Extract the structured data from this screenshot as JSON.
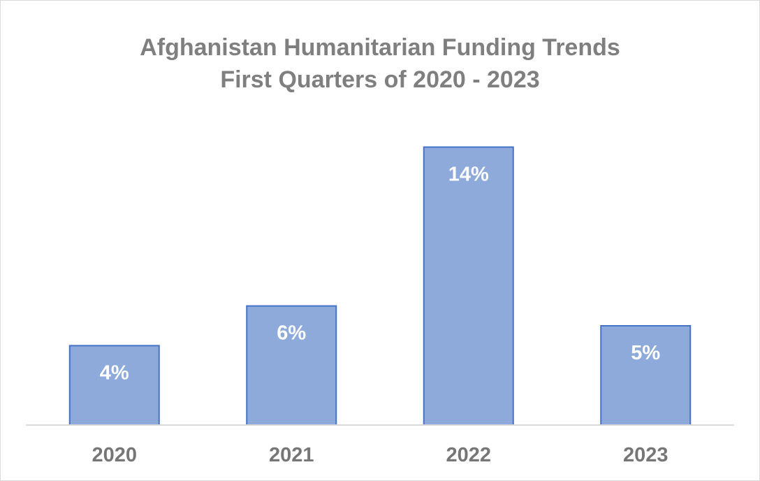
{
  "chart_data": {
    "type": "bar",
    "title": "Afghanistan Humanitarian Funding Trends",
    "subtitle": "First Quarters of 2020 - 2023",
    "categories": [
      "2020",
      "2021",
      "2022",
      "2023"
    ],
    "values": [
      4,
      6,
      14,
      5
    ],
    "data_labels": [
      "4%",
      "6%",
      "14%",
      "5%"
    ],
    "unit": "%",
    "ylim": [
      0,
      15
    ],
    "grid": false,
    "legend": "none",
    "colors": {
      "bar_fill": "#8eaadb",
      "bar_stroke": "#4472c4",
      "label_text": "#ffffff",
      "axis_text": "#767676",
      "axis_line": "#d9d9d9"
    }
  }
}
